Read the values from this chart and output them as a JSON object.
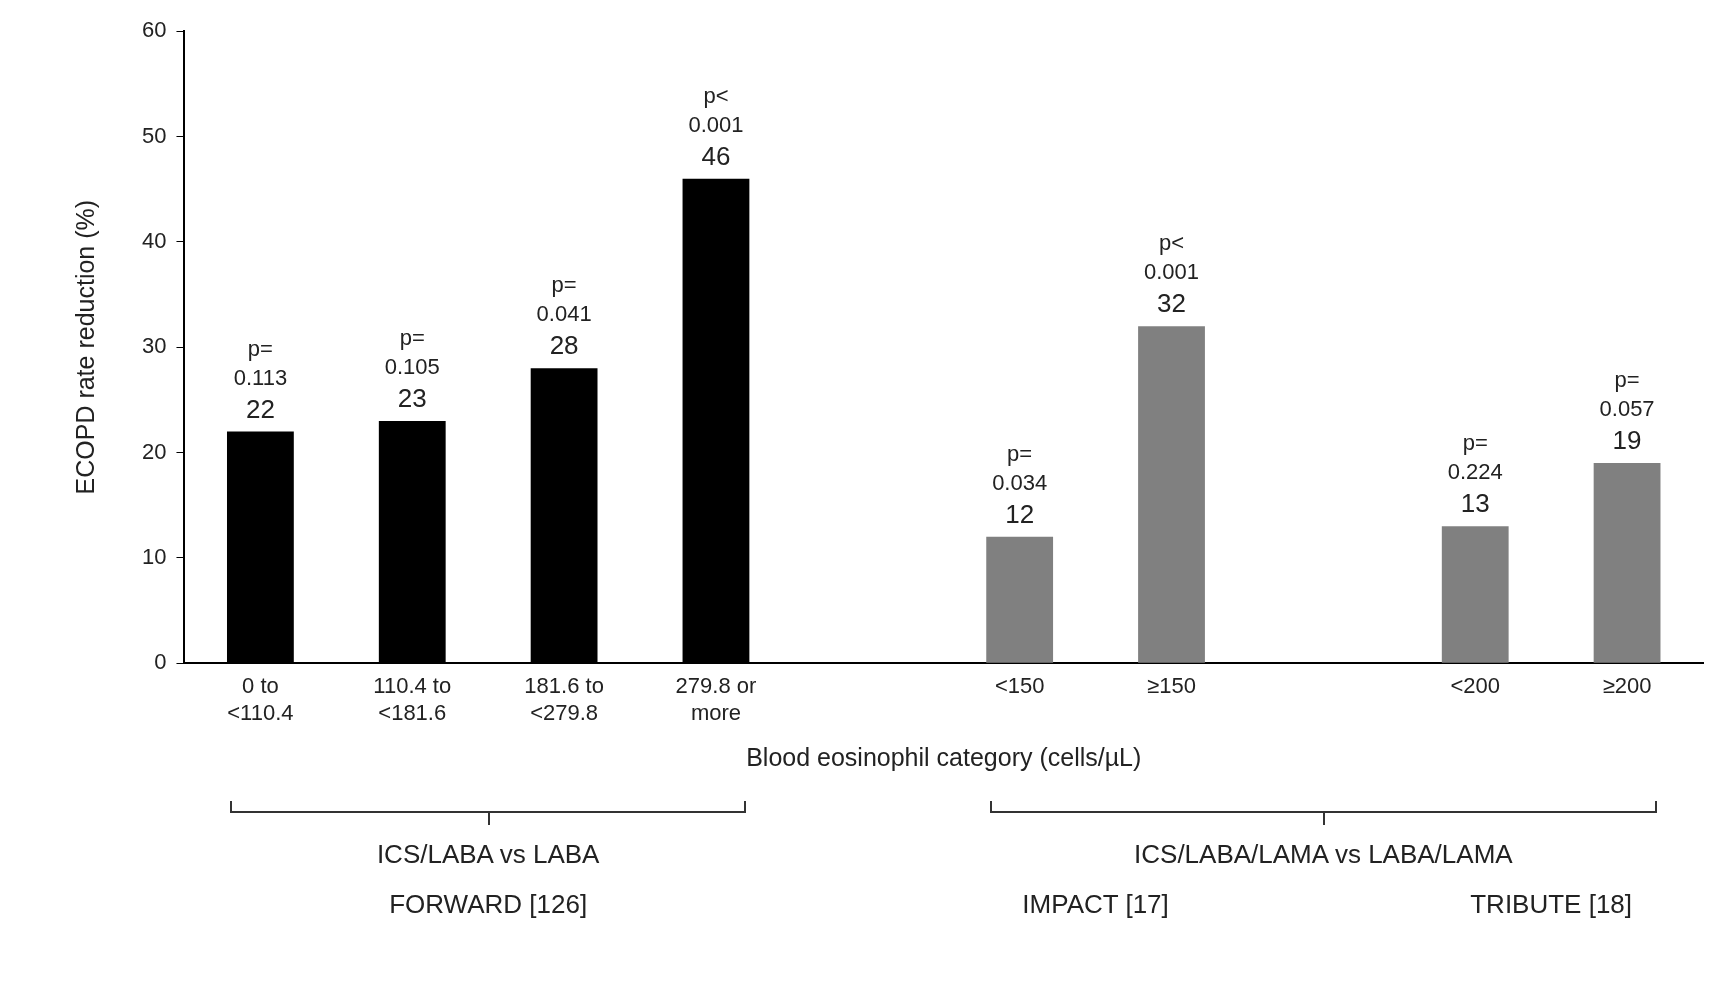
{
  "chart_data": {
    "type": "bar",
    "xlabel": "Blood eosinophil category (cells/µL)",
    "ylabel": "ECOPD rate reduction (%)",
    "categories": [
      "0 to\n<110.4",
      "110.4 to\n<181.6",
      "181.6 to\n<279.8",
      "279.8 or\nmore",
      null,
      "<150",
      "≥150",
      null,
      "<200",
      "≥200"
    ],
    "values": [
      22,
      23,
      28,
      46,
      null,
      12,
      32,
      null,
      13,
      19
    ],
    "colors": [
      "#000000",
      "#000000",
      "#000000",
      "#000000",
      "#808080",
      "#808080",
      "#808080",
      "#808080",
      "#808080",
      "#808080"
    ],
    "ylim": [
      0,
      60
    ],
    "yticks": [
      0,
      10,
      20,
      30,
      40,
      50,
      60
    ],
    "grid": false,
    "legend": false,
    "data_labels": true,
    "annotations": [
      {
        "text": "p=\n0.113",
        "x": "0 to\n<110.4",
        "y": 22
      },
      {
        "text": "p=\n0.105",
        "x": "110.4 to\n<181.6",
        "y": 23
      },
      {
        "text": "p=\n0.041",
        "x": "181.6 to\n<279.8",
        "y": 28
      },
      {
        "text": "p<\n0.001",
        "x": "279.8 or\nmore",
        "y": 46
      },
      {
        "text": "p=\n0.034",
        "x": "<150",
        "y": 12
      },
      {
        "text": "p<\n0.001",
        "x": "≥150",
        "y": 32
      },
      {
        "text": "p=\n0.224",
        "x": "<200",
        "y": 13
      },
      {
        "text": "p=\n0.057",
        "x": "≥200",
        "y": 19
      },
      "ICS/LABA vs LABA",
      "FORWARD [126]",
      "ICS/LABA/LAMA vs LABA/LAMA",
      "IMPACT [17]",
      "TRIBUTE [18]"
    ]
  }
}
